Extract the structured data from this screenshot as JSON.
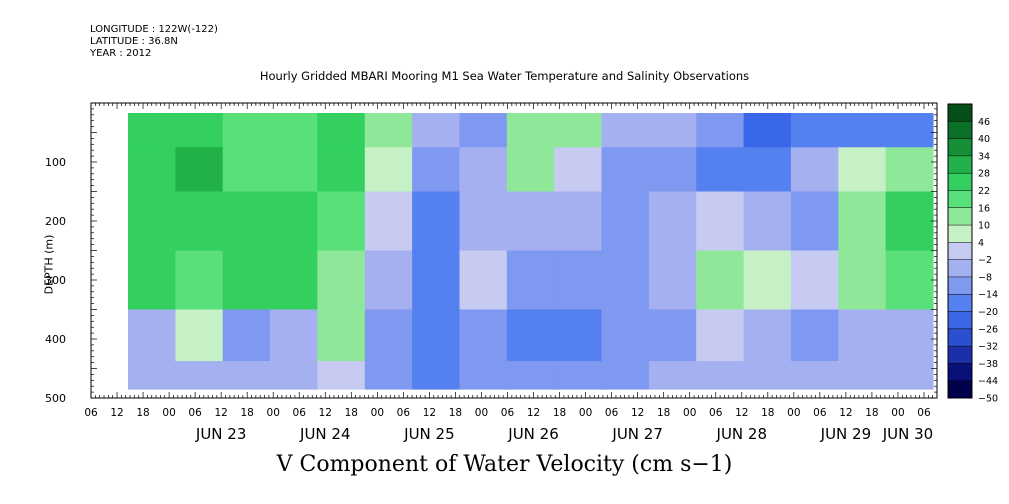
{
  "header": {
    "longitude": "LONGITUDE : 122W(-122)",
    "latitude": "LATITUDE : 36.8N",
    "year": "YEAR : 2012"
  },
  "plot_title": "Hourly Gridded MBARI Mooring M1 Sea Water Temperature and Salinity Observations",
  "variable_title": "V Component of Water Velocity (cm s−1)",
  "chart_data": {
    "type": "heatmap",
    "title": "Hourly Gridded MBARI Mooring M1 Sea Water Temperature and Salinity Observations",
    "variable": "V Component of Water Velocity (cm s−1)",
    "ylabel": "DEPTH (m)",
    "y_inverted": true,
    "ylim": [
      0,
      500
    ],
    "y_ticks": [
      100,
      200,
      300,
      400,
      500
    ],
    "x_range_hours": [
      "2012-06-22T06:00",
      "2012-06-30T09:00"
    ],
    "x_tick_labels": [
      "06",
      "12",
      "18",
      "00",
      "06",
      "12",
      "18",
      "00",
      "06",
      "12",
      "18",
      "00",
      "06",
      "12",
      "18",
      "00",
      "06",
      "12",
      "18",
      "00",
      "06",
      "12",
      "18",
      "00",
      "06",
      "12",
      "18",
      "00",
      "06",
      "12",
      "18",
      "00",
      "06"
    ],
    "x_day_labels": [
      "JUN 23",
      "JUN 24",
      "JUN 25",
      "JUN 26",
      "JUN 27",
      "JUN 28",
      "JUN 29",
      "JUN 30"
    ],
    "colorbar": {
      "levels": [
        -50,
        -44,
        -38,
        -32,
        -26,
        -20,
        -14,
        -8,
        -2,
        4,
        10,
        16,
        22,
        28,
        34,
        40,
        46
      ],
      "labels": [
        "46",
        "40",
        "34",
        "28",
        "22",
        "16",
        "10",
        "4",
        "−2",
        "−8",
        "−14",
        "−20",
        "−26",
        "−32",
        "−38",
        "−44",
        "−50"
      ],
      "colors": [
        "#00004a",
        "#0a0f7a",
        "#1a2fa8",
        "#2a4fcf",
        "#3a67e8",
        "#5580f0",
        "#7f99f0",
        "#a5b0f0",
        "#c7cbf2",
        "#c6f0c6",
        "#8fe89a",
        "#59e07a",
        "#33d060",
        "#22b048",
        "#159038",
        "#0b7028",
        "#055018"
      ]
    },
    "data_rows": [
      {
        "depth": 50,
        "v": [
          18,
          22,
          12,
          16,
          18,
          10,
          -8,
          -14,
          8,
          6,
          -10,
          -12,
          -18,
          -26,
          -24,
          -20,
          -24
        ]
      },
      {
        "depth": 100,
        "v": [
          20,
          24,
          14,
          12,
          20,
          4,
          -16,
          -10,
          6,
          -4,
          -14,
          -18,
          -20,
          -24,
          -8,
          4,
          10
        ]
      },
      {
        "depth": 200,
        "v": [
          22,
          18,
          20,
          22,
          16,
          -2,
          -20,
          -8,
          -10,
          -12,
          -18,
          -8,
          -2,
          -10,
          -14,
          8,
          20
        ]
      },
      {
        "depth": 300,
        "v": [
          22,
          16,
          18,
          20,
          8,
          -12,
          -20,
          -6,
          -14,
          -18,
          -16,
          -12,
          8,
          4,
          -6,
          6,
          16
        ]
      },
      {
        "depth": 400,
        "v": [
          -12,
          4,
          -14,
          -10,
          8,
          -16,
          -22,
          -18,
          -20,
          -20,
          -18,
          -14,
          -2,
          -10,
          -14,
          -8,
          -10
        ]
      },
      {
        "depth": 475,
        "v": [
          -10,
          -8,
          -12,
          -8,
          -2,
          -18,
          -20,
          -16,
          -18,
          -16,
          -14,
          -12,
          -8,
          -8,
          -10,
          -10,
          -12
        ]
      }
    ]
  }
}
